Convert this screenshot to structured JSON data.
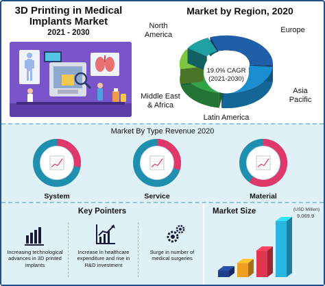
{
  "header": {
    "title": "3D Printing in Medical Implants Market",
    "years": "2021 - 2030"
  },
  "region": {
    "title": "Market by Region, 2020",
    "cagr_line1": "19.0% CAGR",
    "cagr_line2": "(2021-2030)",
    "labels": {
      "north_america": "North America",
      "europe": "Europe",
      "asia_pacific": "Asia Pacific",
      "latin_america": "Latin America",
      "mea": "Middle East & Africa"
    }
  },
  "type_revenue": {
    "title": "Market By Type Revenue 2020",
    "items": [
      {
        "label": "System",
        "share": 0.28
      },
      {
        "label": "Service",
        "share": 0.3
      },
      {
        "label": "Material",
        "share": 0.6
      }
    ]
  },
  "key_pointers": {
    "title": "Key Pointers",
    "items": [
      "Increasing technological advances in 3D printed implants",
      "Increase in healthcare expenditure and rise in R&D investment",
      "Surge in number of medical surgeries"
    ]
  },
  "market_size": {
    "title": "Market Size",
    "unit": "(USD Million)",
    "last_value": "9,069.9"
  },
  "colors": {
    "na": "#1f5fa8",
    "europe": "#1a8ed0",
    "asia_pacific": "#2fa24a",
    "latin_america": "#7cc641",
    "mea": "#1fa0a3",
    "donut_teal": "#1f8fb0",
    "donut_pink": "#e0386b",
    "donut_track": "#cfd6e6",
    "purple": "#7a55c9"
  },
  "chart_data": [
    {
      "type": "pie",
      "title": "Market by Region, 2020",
      "categories": [
        "North America",
        "Europe",
        "Asia Pacific",
        "Latin America",
        "Middle East & Africa"
      ],
      "values": [
        32,
        26,
        20,
        12,
        10
      ]
    },
    {
      "type": "pie",
      "title": "Market By Type Revenue 2020",
      "categories": [
        "System",
        "Service",
        "Material"
      ],
      "values": [
        28,
        30,
        60
      ]
    },
    {
      "type": "bar",
      "title": "Market Size",
      "ylabel": "(USD Million)",
      "categories": [
        "",
        "",
        "",
        ""
      ],
      "values": [
        1100,
        2300,
        4300,
        9069.9
      ],
      "data_labels": [
        "",
        "",
        "",
        "9,069.9"
      ]
    }
  ]
}
